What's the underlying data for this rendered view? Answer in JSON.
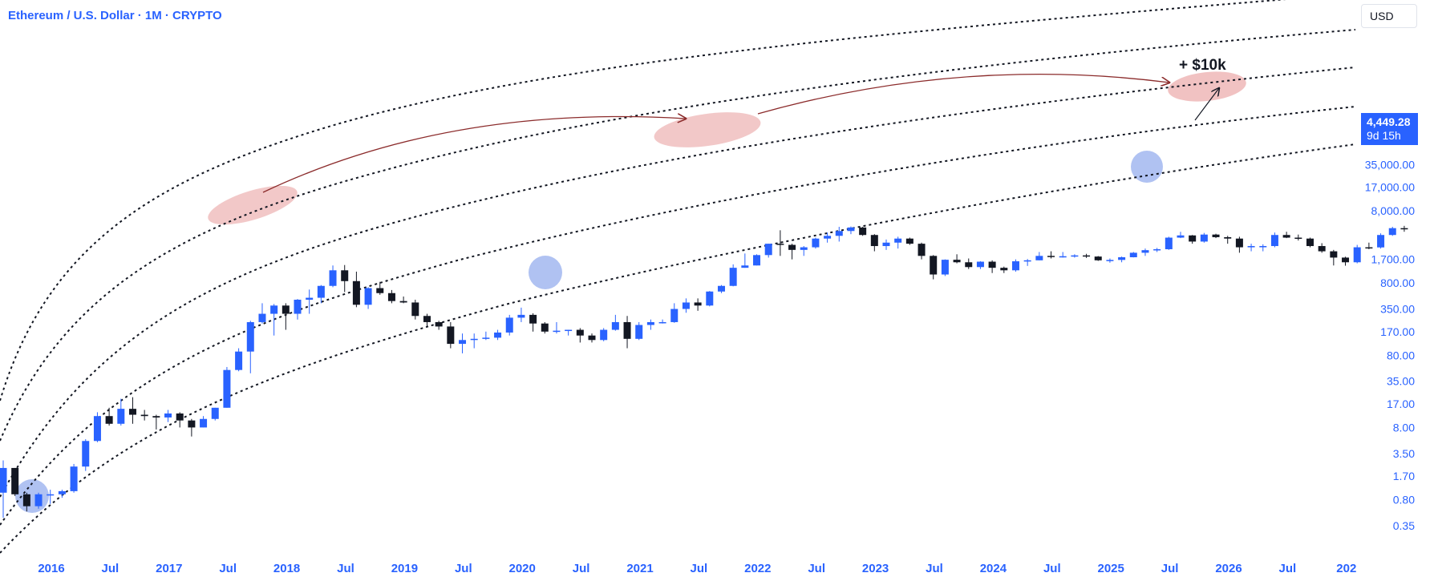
{
  "header": {
    "title": "Ethereum / U.S. Dollar · 1M · CRYPTO",
    "currency": "USD"
  },
  "price_label": {
    "price": "4,449.28",
    "countdown": "9d 15h"
  },
  "annotation": {
    "text": "+ $10k"
  },
  "colors": {
    "up": "#2962ff",
    "down": "#131722",
    "axis_text": "#2962ff",
    "highlight_top": "#e89a9a",
    "highlight_bottom": "#6f8fe8",
    "arrow": "#8b2b2b"
  },
  "chart_data": {
    "type": "candlestick",
    "y_scale": "log",
    "y_ticks": [
      "35,000.00",
      "17,000.00",
      "8,000.00",
      "1,700.00",
      "800.00",
      "350.00",
      "170.00",
      "80.00",
      "35.00",
      "17.00",
      "8.00",
      "3.50",
      "1.70",
      "0.80",
      "0.35"
    ],
    "x_ticks": [
      "2016",
      "Jul",
      "2017",
      "Jul",
      "2018",
      "Jul",
      "2019",
      "Jul",
      "2020",
      "Jul",
      "2021",
      "Jul",
      "2022",
      "Jul",
      "2023",
      "Jul",
      "2024",
      "Jul",
      "2025",
      "Jul",
      "2026",
      "Jul",
      "202"
    ],
    "last_price": 4449.28,
    "candles": [
      [
        1.0,
        2.8,
        0.45,
        2.2
      ],
      [
        2.2,
        2.2,
        0.9,
        0.95
      ],
      [
        0.95,
        1.0,
        0.55,
        0.65
      ],
      [
        0.65,
        1.0,
        0.6,
        0.95
      ],
      [
        0.95,
        1.1,
        0.7,
        0.95
      ],
      [
        0.95,
        1.1,
        0.85,
        1.05
      ],
      [
        1.05,
        2.5,
        1.0,
        2.3
      ],
      [
        2.3,
        5.5,
        2.0,
        5.2
      ],
      [
        5.2,
        13.0,
        5.0,
        11.5
      ],
      [
        11.5,
        15.0,
        8.5,
        9.0
      ],
      [
        9.0,
        20.0,
        8.5,
        14.5
      ],
      [
        14.5,
        21.0,
        9.0,
        12.0
      ],
      [
        12.0,
        14.0,
        10.0,
        11.5
      ],
      [
        11.5,
        12.0,
        7.5,
        11.0
      ],
      [
        11.0,
        14.0,
        9.5,
        12.5
      ],
      [
        12.5,
        13.0,
        8.0,
        10.0
      ],
      [
        10.0,
        10.5,
        6.0,
        8.0
      ],
      [
        8.0,
        11.5,
        8.0,
        10.5
      ],
      [
        10.5,
        15.0,
        10.0,
        15.0
      ],
      [
        15.0,
        55.0,
        15.0,
        50.0
      ],
      [
        50.0,
        100.0,
        48.0,
        90.0
      ],
      [
        90.0,
        240.0,
        45.0,
        230.0
      ],
      [
        230.0,
        420.0,
        220.0,
        300.0
      ],
      [
        300.0,
        410.0,
        150.0,
        390.0
      ],
      [
        390.0,
        420.0,
        180.0,
        300.0
      ],
      [
        300.0,
        480.0,
        250.0,
        470.0
      ],
      [
        470.0,
        650.0,
        300.0,
        500.0
      ],
      [
        500.0,
        750.0,
        420.0,
        730.0
      ],
      [
        730.0,
        1400.0,
        700.0,
        1200.0
      ],
      [
        1200.0,
        1420.0,
        600.0,
        850.0
      ],
      [
        850.0,
        1150.0,
        370.0,
        400.0
      ],
      [
        400.0,
        700.0,
        350.0,
        680.0
      ],
      [
        680.0,
        830.0,
        550.0,
        580.0
      ],
      [
        580.0,
        640.0,
        420.0,
        450.0
      ],
      [
        450.0,
        520.0,
        420.0,
        430.0
      ],
      [
        430.0,
        470.0,
        250.0,
        280.0
      ],
      [
        280.0,
        300.0,
        200.0,
        230.0
      ],
      [
        230.0,
        240.0,
        180.0,
        200.0
      ],
      [
        200.0,
        230.0,
        100.0,
        115.0
      ],
      [
        115.0,
        160.0,
        85.0,
        130.0
      ],
      [
        130.0,
        160.0,
        100.0,
        135.0
      ],
      [
        135.0,
        170.0,
        130.0,
        140.0
      ],
      [
        140.0,
        180.0,
        130.0,
        165.0
      ],
      [
        165.0,
        290.0,
        150.0,
        265.0
      ],
      [
        265.0,
        365.0,
        230.0,
        290.0
      ],
      [
        290.0,
        305.0,
        170.0,
        220.0
      ],
      [
        220.0,
        230.0,
        160.0,
        170.0
      ],
      [
        170.0,
        230.0,
        160.0,
        175.0
      ],
      [
        175.0,
        180.0,
        150.0,
        180.0
      ],
      [
        180.0,
        190.0,
        120.0,
        150.0
      ],
      [
        150.0,
        160.0,
        120.0,
        130.0
      ],
      [
        130.0,
        190.0,
        125.0,
        180.0
      ],
      [
        180.0,
        290.0,
        175.0,
        230.0
      ],
      [
        230.0,
        280.0,
        100.0,
        135.0
      ],
      [
        135.0,
        230.0,
        130.0,
        210.0
      ],
      [
        210.0,
        250.0,
        180.0,
        230.0
      ],
      [
        230.0,
        250.0,
        220.0,
        230.0
      ],
      [
        230.0,
        420.0,
        225.0,
        350.0
      ],
      [
        350.0,
        490.0,
        310.0,
        430.0
      ],
      [
        430.0,
        490.0,
        330.0,
        390.0
      ],
      [
        390.0,
        620.0,
        380.0,
        610.0
      ],
      [
        610.0,
        750.0,
        580.0,
        730.0
      ],
      [
        730.0,
        1450.0,
        720.0,
        1300.0
      ],
      [
        1300.0,
        2050.0,
        1300.0,
        1400.0
      ],
      [
        1400.0,
        2000.0,
        1400.0,
        1950.0
      ],
      [
        1950.0,
        2800.0,
        1800.0,
        2800.0
      ],
      [
        2800.0,
        4300.0,
        1900.0,
        2700.0
      ],
      [
        2700.0,
        2800.0,
        1700.0,
        2300.0
      ],
      [
        2300.0,
        2600.0,
        1900.0,
        2500.0
      ],
      [
        2500.0,
        3400.0,
        2400.0,
        3300.0
      ],
      [
        3300.0,
        4000.0,
        2900.0,
        3600.0
      ],
      [
        3600.0,
        4800.0,
        3000.0,
        4200.0
      ],
      [
        4200.0,
        4850.0,
        3800.0,
        4700.0
      ],
      [
        4700.0,
        4800.0,
        3600.0,
        3700.0
      ],
      [
        3700.0,
        3800.0,
        2200.0,
        2600.0
      ],
      [
        2600.0,
        3200.0,
        2300.0,
        2900.0
      ],
      [
        2900.0,
        3500.0,
        2400.0,
        3300.0
      ],
      [
        3300.0,
        3400.0,
        2700.0,
        2800.0
      ],
      [
        2800.0,
        2900.0,
        1700.0,
        1900.0
      ],
      [
        1900.0,
        1950.0,
        900.0,
        1050.0
      ],
      [
        1050.0,
        1700.0,
        1000.0,
        1680.0
      ],
      [
        1680.0,
        2000.0,
        1500.0,
        1550.0
      ],
      [
        1550.0,
        1750.0,
        1250.0,
        1330.0
      ],
      [
        1330.0,
        1600.0,
        1250.0,
        1580.0
      ],
      [
        1580.0,
        1650.0,
        1100.0,
        1300.0
      ],
      [
        1300.0,
        1350.0,
        1100.0,
        1200.0
      ],
      [
        1200.0,
        1700.0,
        1150.0,
        1600.0
      ],
      [
        1600.0,
        1720.0,
        1380.0,
        1650.0
      ],
      [
        1650.0,
        2150.0,
        1650.0,
        1900.0
      ],
      [
        1900.0,
        2200.0,
        1750.0,
        1880.0
      ],
      [
        1880.0,
        2150.0,
        1800.0,
        1880.0
      ],
      [
        1880.0,
        2000.0,
        1800.0,
        1930.0
      ],
      [
        1930.0,
        2030.0,
        1780.0,
        1860.0
      ],
      [
        1860.0,
        1890.0,
        1620.0,
        1650.0
      ],
      [
        1650.0,
        1750.0,
        1530.0,
        1670.0
      ],
      [
        1670.0,
        1860.0,
        1550.0,
        1820.0
      ],
      [
        1820.0,
        2150.0,
        1810.0,
        2100.0
      ],
      [
        2100.0,
        2400.0,
        1900.0,
        2280.0
      ],
      [
        2280.0,
        2450.0,
        2150.0,
        2350.0
      ],
      [
        2350.0,
        3500.0,
        2300.0,
        3400.0
      ],
      [
        3400.0,
        4100.0,
        3350.0,
        3650.0
      ],
      [
        3650.0,
        3700.0,
        2800.0,
        3000.0
      ],
      [
        3000.0,
        3950.0,
        2900.0,
        3750.0
      ],
      [
        3750.0,
        3850.0,
        3350.0,
        3450.0
      ],
      [
        3450.0,
        3600.0,
        2800.0,
        3300.0
      ],
      [
        3300.0,
        3500.0,
        2100.0,
        2500.0
      ],
      [
        2500.0,
        2800.0,
        2200.0,
        2600.0
      ],
      [
        2600.0,
        2750.0,
        2200.0,
        2600.0
      ],
      [
        2600.0,
        4000.0,
        2500.0,
        3700.0
      ],
      [
        3700.0,
        4100.0,
        3350.0,
        3400.0
      ],
      [
        3400.0,
        3750.0,
        3100.0,
        3300.0
      ],
      [
        3300.0,
        3400.0,
        2500.0,
        2600.0
      ],
      [
        2600.0,
        2850.0,
        2100.0,
        2200.0
      ],
      [
        2200.0,
        2300.0,
        1400.0,
        1800.0
      ],
      [
        1800.0,
        1850.0,
        1390.0,
        1550.0
      ],
      [
        1550.0,
        2700.0,
        1500.0,
        2500.0
      ],
      [
        2500.0,
        2900.0,
        2350.0,
        2490.0
      ],
      [
        2490.0,
        3900.0,
        2400.0,
        3700.0
      ],
      [
        3700.0,
        4800.0,
        3600.0,
        4600.0
      ],
      [
        4600.0,
        4950.0,
        4100.0,
        4449.28
      ]
    ]
  }
}
